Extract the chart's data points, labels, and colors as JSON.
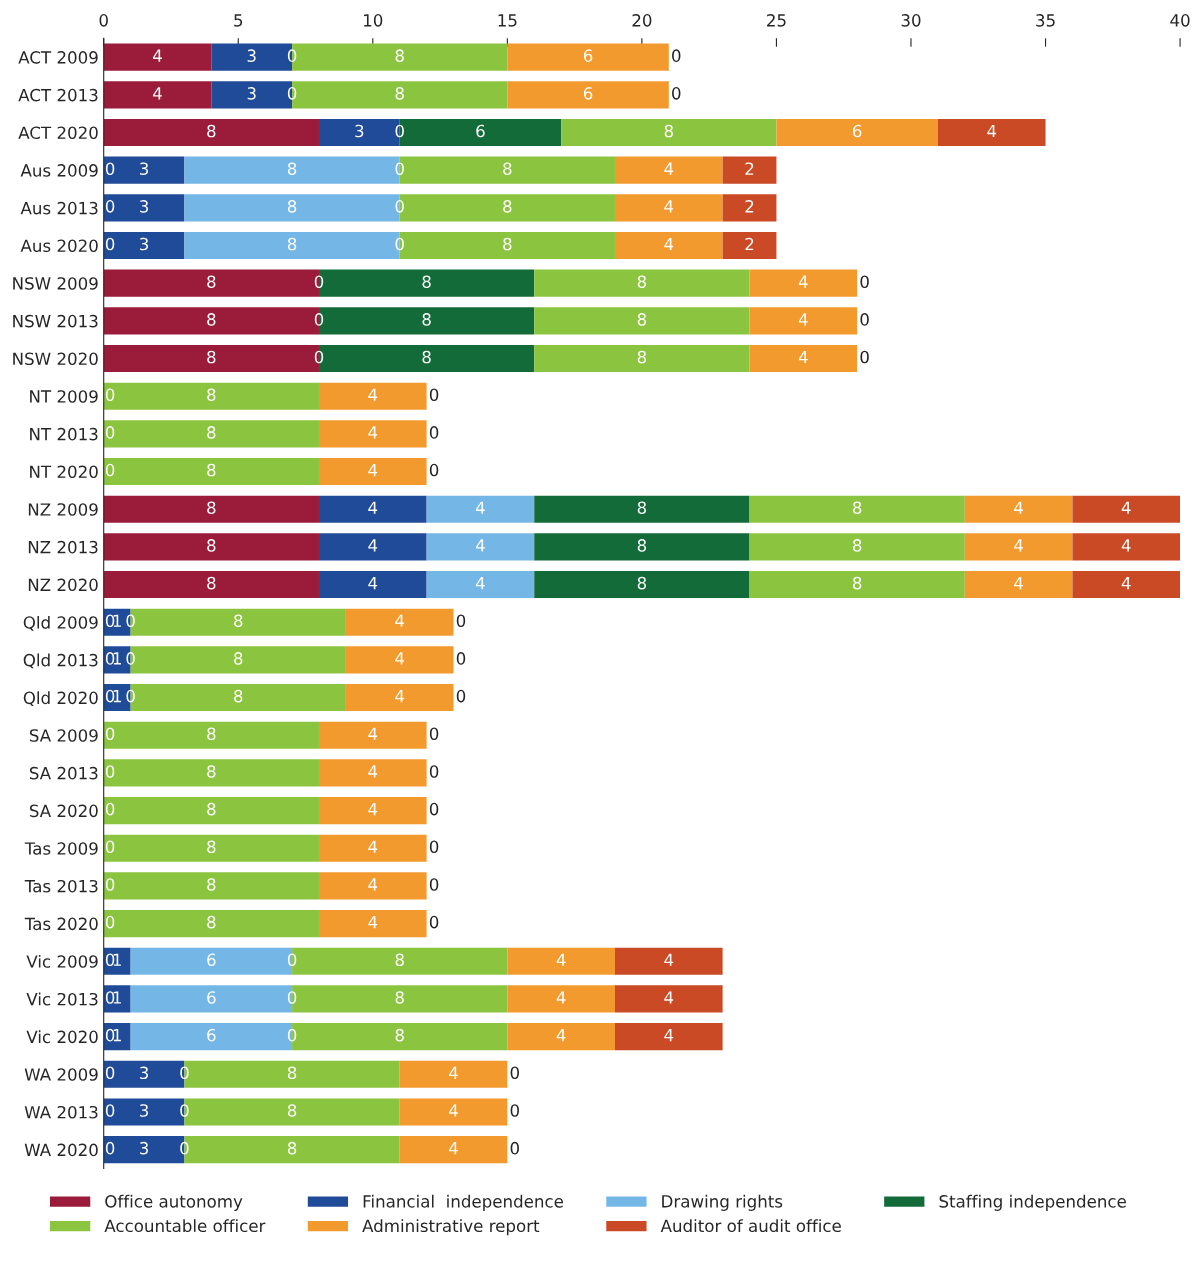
{
  "chart_data": {
    "type": "bar",
    "orientation": "horizontal",
    "stacked": true,
    "data_labels": true,
    "legend": "bottom",
    "grid": false,
    "categories": [
      "ACT 2009",
      "ACT 2013",
      "ACT 2020",
      "Aus 2009",
      "Aus 2013",
      "Aus 2020",
      "NSW 2009",
      "NSW 2013",
      "NSW 2020",
      "NT 2009",
      "NT 2013",
      "NT 2020",
      "NZ 2009",
      "NZ 2013",
      "NZ 2020",
      "Qld 2009",
      "Qld 2013",
      "Qld 2020",
      "SA 2009",
      "SA 2013",
      "SA 2020",
      "Tas 2009",
      "Tas 2013",
      "Tas 2020",
      "Vic 2009",
      "Vic 2013",
      "Vic 2020",
      "WA 2009",
      "WA 2013",
      "WA 2020"
    ],
    "xlim": [
      0,
      40
    ],
    "xticks": [
      0,
      5,
      10,
      15,
      20,
      25,
      30,
      35,
      40
    ],
    "series": [
      {
        "name": "Office autonomy",
        "color": "#9b1b3a",
        "values": [
          4,
          4,
          8,
          null,
          null,
          null,
          8,
          8,
          8,
          null,
          null,
          null,
          8,
          8,
          8,
          null,
          null,
          null,
          null,
          null,
          null,
          null,
          null,
          null,
          null,
          null,
          null,
          null,
          null,
          null
        ]
      },
      {
        "name": "Financial  independence",
        "color": "#1f4b99",
        "values": [
          3,
          3,
          3,
          3,
          3,
          3,
          null,
          null,
          null,
          null,
          null,
          null,
          4,
          4,
          4,
          1,
          1,
          1,
          null,
          null,
          null,
          null,
          null,
          null,
          1,
          1,
          1,
          3,
          3,
          3
        ]
      },
      {
        "name": "Drawing rights",
        "color": "#74b7e6",
        "values": [
          null,
          null,
          null,
          8,
          8,
          8,
          null,
          null,
          null,
          null,
          null,
          null,
          4,
          4,
          4,
          null,
          null,
          null,
          null,
          null,
          null,
          null,
          null,
          null,
          6,
          6,
          6,
          null,
          null,
          null
        ]
      },
      {
        "name": "Staffing independence",
        "color": "#146b3a",
        "values": [
          null,
          null,
          6,
          null,
          null,
          null,
          8,
          8,
          8,
          null,
          null,
          null,
          8,
          8,
          8,
          null,
          null,
          null,
          null,
          null,
          null,
          null,
          null,
          null,
          null,
          null,
          null,
          null,
          null,
          null
        ]
      },
      {
        "name": "Accountable officer",
        "color": "#8bc53f",
        "values": [
          8,
          8,
          8,
          8,
          8,
          8,
          8,
          8,
          8,
          8,
          8,
          8,
          8,
          8,
          8,
          8,
          8,
          8,
          8,
          8,
          8,
          8,
          8,
          8,
          8,
          8,
          8,
          8,
          8,
          8
        ]
      },
      {
        "name": "Administrative report",
        "color": "#f39a2f",
        "values": [
          6,
          6,
          6,
          4,
          4,
          4,
          4,
          4,
          4,
          4,
          4,
          4,
          4,
          4,
          4,
          4,
          4,
          4,
          4,
          4,
          4,
          4,
          4,
          4,
          4,
          4,
          4,
          4,
          4,
          4
        ]
      },
      {
        "name": "Auditor of audit office",
        "color": "#c94a25",
        "values": [
          null,
          null,
          4,
          2,
          2,
          2,
          null,
          null,
          null,
          null,
          null,
          null,
          4,
          4,
          4,
          null,
          null,
          null,
          null,
          null,
          null,
          null,
          null,
          null,
          4,
          4,
          4,
          null,
          null,
          null
        ]
      }
    ],
    "annotations": [
      {
        "text": "0",
        "x": 7,
        "y": "ACT 2009"
      },
      {
        "text": "0",
        "x": 21,
        "y": "ACT 2009"
      },
      {
        "text": "0",
        "x": 7,
        "y": "ACT 2013"
      },
      {
        "text": "0",
        "x": 21,
        "y": "ACT 2013"
      },
      {
        "text": "0",
        "x": 11,
        "y": "ACT 2020"
      },
      {
        "text": "0",
        "x": 0,
        "y": "Aus 2009"
      },
      {
        "text": "0",
        "x": 11,
        "y": "Aus 2009"
      },
      {
        "text": "0",
        "x": 0,
        "y": "Aus 2013"
      },
      {
        "text": "0",
        "x": 11,
        "y": "Aus 2013"
      },
      {
        "text": "0",
        "x": 0,
        "y": "Aus 2020"
      },
      {
        "text": "0",
        "x": 11,
        "y": "Aus 2020"
      },
      {
        "text": "0",
        "x": 8,
        "y": "NSW 2009"
      },
      {
        "text": "0",
        "x": 28,
        "y": "NSW 2009"
      },
      {
        "text": "0",
        "x": 8,
        "y": "NSW 2013"
      },
      {
        "text": "0",
        "x": 28,
        "y": "NSW 2013"
      },
      {
        "text": "0",
        "x": 8,
        "y": "NSW 2020"
      },
      {
        "text": "0",
        "x": 28,
        "y": "NSW 2020"
      },
      {
        "text": "0",
        "x": 0,
        "y": "NT 2009"
      },
      {
        "text": "0",
        "x": 12,
        "y": "NT 2009"
      },
      {
        "text": "0",
        "x": 0,
        "y": "NT 2013"
      },
      {
        "text": "0",
        "x": 12,
        "y": "NT 2013"
      },
      {
        "text": "0",
        "x": 0,
        "y": "NT 2020"
      },
      {
        "text": "0",
        "x": 12,
        "y": "NT 2020"
      },
      {
        "text": "0",
        "x": 0,
        "y": "Qld 2009"
      },
      {
        "text": "0",
        "x": 1,
        "y": "Qld 2009"
      },
      {
        "text": "0",
        "x": 13,
        "y": "Qld 2009"
      },
      {
        "text": "0",
        "x": 0,
        "y": "Qld 2013"
      },
      {
        "text": "0",
        "x": 1,
        "y": "Qld 2013"
      },
      {
        "text": "0",
        "x": 13,
        "y": "Qld 2013"
      },
      {
        "text": "0",
        "x": 0,
        "y": "Qld 2020"
      },
      {
        "text": "0",
        "x": 1,
        "y": "Qld 2020"
      },
      {
        "text": "0",
        "x": 13,
        "y": "Qld 2020"
      },
      {
        "text": "0",
        "x": 0,
        "y": "SA 2009"
      },
      {
        "text": "0",
        "x": 12,
        "y": "SA 2009"
      },
      {
        "text": "0",
        "x": 0,
        "y": "SA 2013"
      },
      {
        "text": "0",
        "x": 12,
        "y": "SA 2013"
      },
      {
        "text": "0",
        "x": 0,
        "y": "SA 2020"
      },
      {
        "text": "0",
        "x": 12,
        "y": "SA 2020"
      },
      {
        "text": "0",
        "x": 0,
        "y": "Tas 2009"
      },
      {
        "text": "0",
        "x": 12,
        "y": "Tas 2009"
      },
      {
        "text": "0",
        "x": 0,
        "y": "Tas 2013"
      },
      {
        "text": "0",
        "x": 12,
        "y": "Tas 2013"
      },
      {
        "text": "0",
        "x": 0,
        "y": "Tas 2020"
      },
      {
        "text": "0",
        "x": 12,
        "y": "Tas 2020"
      },
      {
        "text": "0",
        "x": 0,
        "y": "Vic 2009"
      },
      {
        "text": "0",
        "x": 7,
        "y": "Vic 2009"
      },
      {
        "text": "0",
        "x": 0,
        "y": "Vic 2013"
      },
      {
        "text": "0",
        "x": 7,
        "y": "Vic 2013"
      },
      {
        "text": "0",
        "x": 0,
        "y": "Vic 2020"
      },
      {
        "text": "0",
        "x": 7,
        "y": "Vic 2020"
      },
      {
        "text": "0",
        "x": 0,
        "y": "WA 2009"
      },
      {
        "text": "0",
        "x": 3,
        "y": "WA 2009"
      },
      {
        "text": "0",
        "x": 15,
        "y": "WA 2009"
      },
      {
        "text": "0",
        "x": 0,
        "y": "WA 2013"
      },
      {
        "text": "0",
        "x": 3,
        "y": "WA 2013"
      },
      {
        "text": "0",
        "x": 15,
        "y": "WA 2013"
      },
      {
        "text": "0",
        "x": 0,
        "y": "WA 2020"
      },
      {
        "text": "0",
        "x": 3,
        "y": "WA 2020"
      },
      {
        "text": "0",
        "x": 15,
        "y": "WA 2020"
      }
    ]
  }
}
